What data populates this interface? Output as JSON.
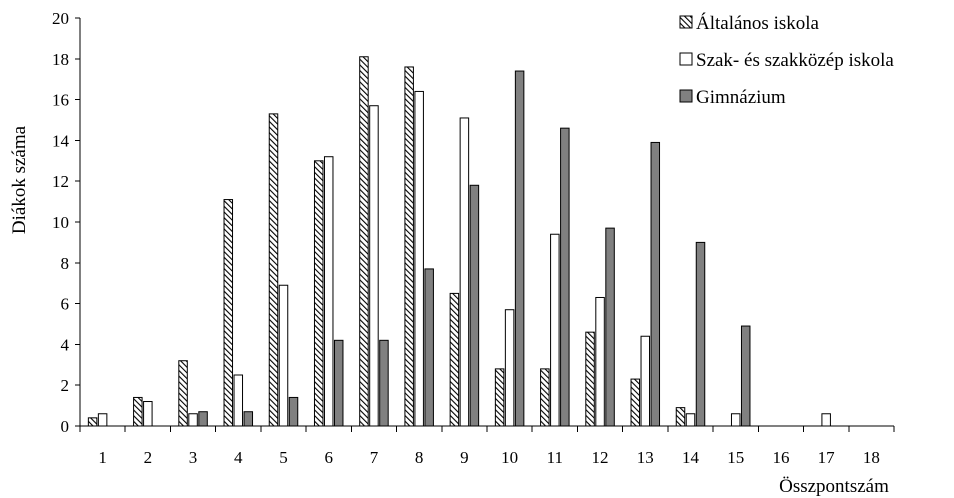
{
  "chart_data": {
    "type": "bar",
    "title": "",
    "xlabel": "Összpontszám",
    "ylabel": "Diákok száma",
    "categories": [
      "1",
      "2",
      "3",
      "4",
      "5",
      "6",
      "7",
      "8",
      "9",
      "10",
      "11",
      "12",
      "13",
      "14",
      "15",
      "16",
      "17",
      "18"
    ],
    "ylim": [
      0,
      20
    ],
    "yticks": [
      "0",
      "2",
      "4",
      "6",
      "8",
      "10",
      "12",
      "14",
      "16",
      "18",
      "20"
    ],
    "grid": false,
    "legend_position": "top-right",
    "series": [
      {
        "name": "Általános iskola",
        "fill": "hatched",
        "color": "#000000",
        "values": [
          0.4,
          1.4,
          3.2,
          11.1,
          15.3,
          13.0,
          18.1,
          17.6,
          6.5,
          2.8,
          2.8,
          4.6,
          2.3,
          0.9,
          0,
          0,
          0,
          0
        ]
      },
      {
        "name": "Szak- és szakközép iskola",
        "fill": "white",
        "color": "#ffffff",
        "values": [
          0.6,
          1.2,
          0.6,
          2.5,
          6.9,
          13.2,
          15.7,
          16.4,
          15.1,
          5.7,
          9.4,
          6.3,
          4.4,
          0.6,
          0.6,
          0,
          0.6,
          0
        ]
      },
      {
        "name": "Gimnázium",
        "fill": "gray",
        "color": "#808080",
        "values": [
          0,
          0,
          0.7,
          0.7,
          1.4,
          4.2,
          4.2,
          7.7,
          11.8,
          17.4,
          14.6,
          9.7,
          13.9,
          9.0,
          4.9,
          0,
          0,
          0
        ]
      }
    ]
  }
}
